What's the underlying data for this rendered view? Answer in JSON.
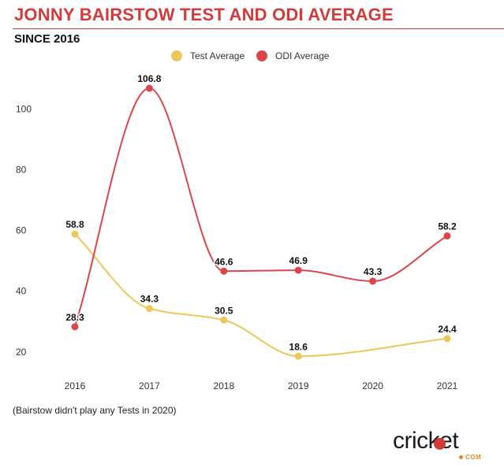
{
  "header": {
    "title": "JONNY BAIRSTOW TEST AND ODI AVERAGE",
    "subtitle": "SINCE 2016"
  },
  "footnote": "(Bairstow didn't play any Tests in 2020)",
  "logo": {
    "text": "cricket",
    "suffix": "COM",
    "ball_color": "#d33b3b",
    "accent_color": "#e78a1e"
  },
  "chart_data": {
    "type": "line",
    "title": "JONNY BAIRSTOW TEST AND ODI AVERAGE",
    "subtitle": "SINCE 2016",
    "categories": [
      "2016",
      "2017",
      "2018",
      "2019",
      "2020",
      "2021"
    ],
    "series": [
      {
        "name": "Test Average",
        "color": "#ecc85a",
        "values": [
          58.8,
          34.3,
          30.5,
          18.6,
          null,
          24.4
        ]
      },
      {
        "name": "ODI Average",
        "color": "#d9474b",
        "values": [
          28.3,
          106.8,
          46.6,
          46.9,
          43.3,
          58.2
        ]
      }
    ],
    "yticks": [
      20,
      40,
      60,
      80,
      100
    ],
    "ylim": [
      14,
      112
    ],
    "xlabel": "",
    "ylabel": "",
    "grid": false,
    "legend_position": "top-center",
    "curve": "smooth"
  }
}
